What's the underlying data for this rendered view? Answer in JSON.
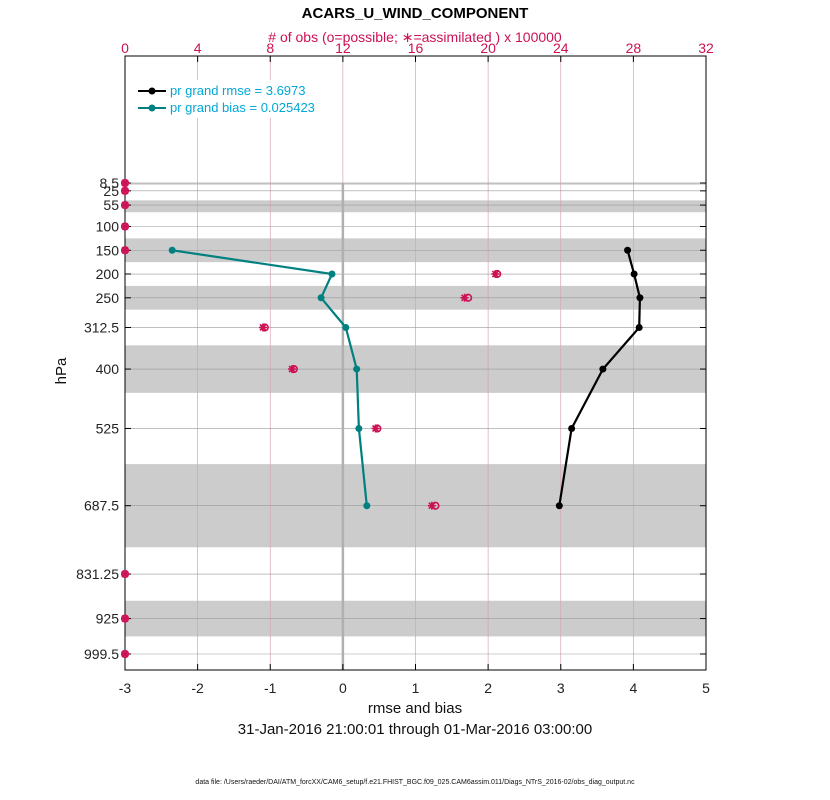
{
  "chart_data": {
    "type": "line",
    "title": "ACARS_U_WIND_COMPONENT",
    "top_axis_label": "# of obs (o=possible; ∗=assimilated ) x 100000",
    "xlabel": "rmse and bias",
    "ylabel": "hPa",
    "date_range": "31-Jan-2016 21:00:01 through 01-Mar-2016 03:00:00",
    "footer": "data file: /Users/raeder/DAI/ATM_forcXX/CAM6_setup/f.e21.FHIST_BGC.f09_025.CAM6assim.011/Diags_NTrS_2016-02/obs_diag_output.nc",
    "xlim": [
      -3,
      5
    ],
    "xticks": [
      "-3",
      "-2",
      "-1",
      "0",
      "1",
      "2",
      "3",
      "4",
      "5"
    ],
    "top_xlim": [
      0,
      32
    ],
    "top_xticks": [
      "0",
      "4",
      "8",
      "12",
      "16",
      "20",
      "24",
      "28",
      "32"
    ],
    "levels": [
      8.5,
      25,
      55,
      100,
      150,
      200,
      250,
      312.5,
      400,
      525,
      687.5,
      831.25,
      925,
      999.5
    ],
    "level_labels": [
      "8.5",
      "25",
      "55",
      "100",
      "150",
      "200",
      "250",
      "312.5",
      "400",
      "525",
      "687.5",
      "831.25",
      "925",
      "999.5"
    ],
    "series": [
      {
        "name": "rmse",
        "legend": "pr grand rmse = 3.6973",
        "color": "#000000",
        "levels": [
          150,
          200,
          250,
          312.5,
          400,
          525,
          687.5
        ],
        "values": [
          3.92,
          4.01,
          4.09,
          4.08,
          3.58,
          3.15,
          2.98
        ]
      },
      {
        "name": "bias",
        "legend": "pr grand bias = 0.025423",
        "color": "#008080",
        "levels": [
          150,
          200,
          250,
          312.5,
          400,
          525,
          687.5
        ],
        "values": [
          -2.35,
          -0.15,
          -0.3,
          0.04,
          0.19,
          0.22,
          0.33
        ]
      }
    ],
    "obs_counts": {
      "color": "#cc1155",
      "levels": [
        8.5,
        25,
        55,
        100,
        150,
        200,
        250,
        312.5,
        400,
        525,
        687.5,
        831.25,
        925,
        999.5
      ],
      "possible": [
        0,
        0,
        0,
        0,
        0,
        20.5,
        18.9,
        7.7,
        9.3,
        13.9,
        17.1,
        0,
        0,
        0
      ],
      "assimilated": [
        0,
        0,
        0,
        0,
        0,
        20.4,
        18.7,
        7.6,
        9.2,
        13.8,
        16.9,
        0,
        0,
        0
      ]
    },
    "shaded_bands": [
      [
        8,
        12
      ],
      [
        45,
        70
      ],
      [
        125,
        175
      ],
      [
        225,
        275
      ],
      [
        350,
        450
      ],
      [
        600,
        775
      ],
      [
        887.5,
        962.5
      ]
    ],
    "grid": true
  }
}
